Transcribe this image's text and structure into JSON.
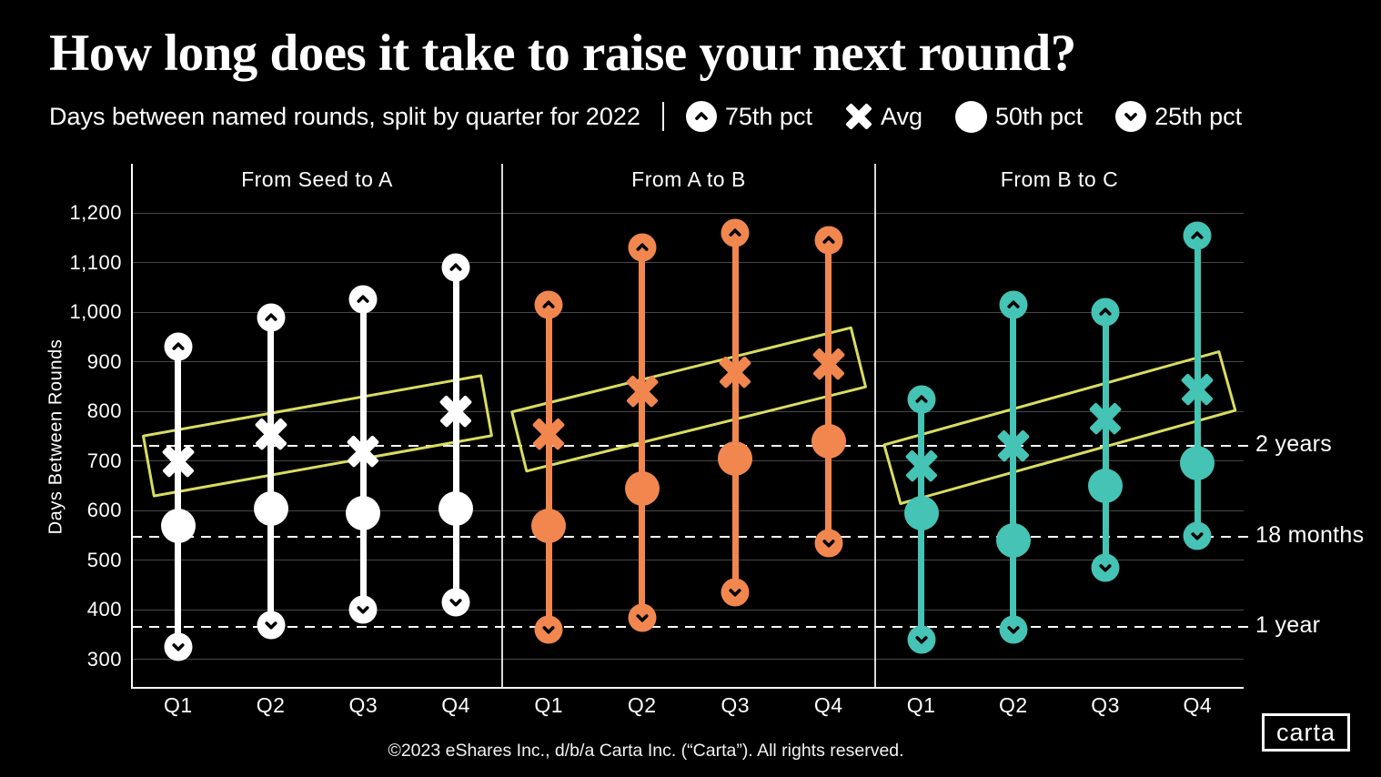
{
  "header": {
    "title": "How long does it take to raise your next round?",
    "subtitle": "Days between named rounds, split by quarter for 2022",
    "separator": "|"
  },
  "legend": {
    "items": [
      {
        "icon": "chevron-up-circle-icon",
        "label": "75th pct"
      },
      {
        "icon": "x-icon",
        "label": "Avg"
      },
      {
        "icon": "filled-circle-icon",
        "label": "50th pct"
      },
      {
        "icon": "chevron-down-circle-icon",
        "label": "25th pct"
      }
    ]
  },
  "footer": {
    "copyright": "©2023 eShares Inc., d/b/a Carta Inc. (“Carta”). All rights reserved.",
    "logo": "carta"
  },
  "chart_data": {
    "type": "range-dot",
    "title": "How long does it take to raise your next round?",
    "subtitle": "Days between named rounds, split by quarter for 2022",
    "ylabel": "Days Between Rounds",
    "categories": [
      "Q1",
      "Q2",
      "Q3",
      "Q4"
    ],
    "ylim": [
      245,
      1245
    ],
    "grid": true,
    "yticks": [
      {
        "value": 1200,
        "label": "1,200"
      },
      {
        "value": 1100,
        "label": "1,100"
      },
      {
        "value": 1000,
        "label": "1,000"
      },
      {
        "value": 900,
        "label": "900"
      },
      {
        "value": 800,
        "label": "800"
      },
      {
        "value": 700,
        "label": "700"
      },
      {
        "value": 600,
        "label": "600"
      },
      {
        "value": 500,
        "label": "500"
      },
      {
        "value": 400,
        "label": "400"
      },
      {
        "value": 300,
        "label": "300"
      }
    ],
    "reference_lines": [
      {
        "label": "2 years",
        "value": 730
      },
      {
        "label": "18 months",
        "value": 548
      },
      {
        "label": "1 year",
        "value": 365
      }
    ],
    "panels": [
      {
        "title": "From Seed to A",
        "color": "#FFFFFF",
        "series": {
          "p75": [
            930,
            990,
            1025,
            1090
          ],
          "avg": [
            700,
            755,
            720,
            800
          ],
          "p50": [
            570,
            605,
            595,
            605
          ],
          "p25": [
            325,
            370,
            400,
            415
          ]
        }
      },
      {
        "title": "From A to B",
        "color": "#F1874F",
        "series": {
          "p75": [
            1015,
            1130,
            1160,
            1145
          ],
          "avg": [
            755,
            840,
            880,
            895
          ],
          "p50": [
            570,
            645,
            705,
            740
          ],
          "p25": [
            360,
            385,
            435,
            535
          ]
        }
      },
      {
        "title": "From B to C",
        "color": "#45C3B5",
        "series": {
          "p75": [
            825,
            1015,
            1000,
            1155
          ],
          "avg": [
            690,
            730,
            785,
            845
          ],
          "p50": [
            595,
            540,
            650,
            695
          ],
          "p25": [
            340,
            360,
            485,
            550
          ]
        }
      }
    ],
    "trend_highlight": {
      "color": "#D9DD5F",
      "on": "avg"
    }
  }
}
